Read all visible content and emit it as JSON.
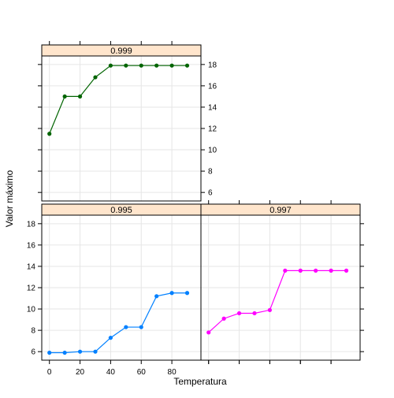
{
  "chart_data": {
    "type": "line",
    "xlabel": "Temperatura",
    "ylabel": "Valor máximo",
    "xlim": [
      -5,
      99
    ],
    "ylim": [
      5.2,
      18.8
    ],
    "x_ticks": [
      0,
      20,
      40,
      60,
      80
    ],
    "y_ticks": [
      6,
      8,
      10,
      12,
      14,
      16,
      18
    ],
    "grid": true,
    "strip_color": "#ffe5cc",
    "x": [
      0,
      10,
      20,
      30,
      40,
      50,
      60,
      70,
      80,
      90
    ],
    "panels": [
      {
        "name": "0.999",
        "color": "#006400",
        "values": [
          11.5,
          15.0,
          15.0,
          16.8,
          17.9,
          17.9,
          17.9,
          17.9,
          17.9,
          17.9
        ]
      },
      {
        "name": "0.995",
        "color": "#0080ff",
        "values": [
          5.9,
          5.9,
          6.0,
          6.0,
          7.3,
          8.3,
          8.3,
          11.2,
          11.5,
          11.5
        ]
      },
      {
        "name": "0.997",
        "color": "#ff00ff",
        "values": [
          7.8,
          9.1,
          9.6,
          9.6,
          9.9,
          13.6,
          13.6,
          13.6,
          13.6,
          13.6
        ]
      }
    ]
  }
}
